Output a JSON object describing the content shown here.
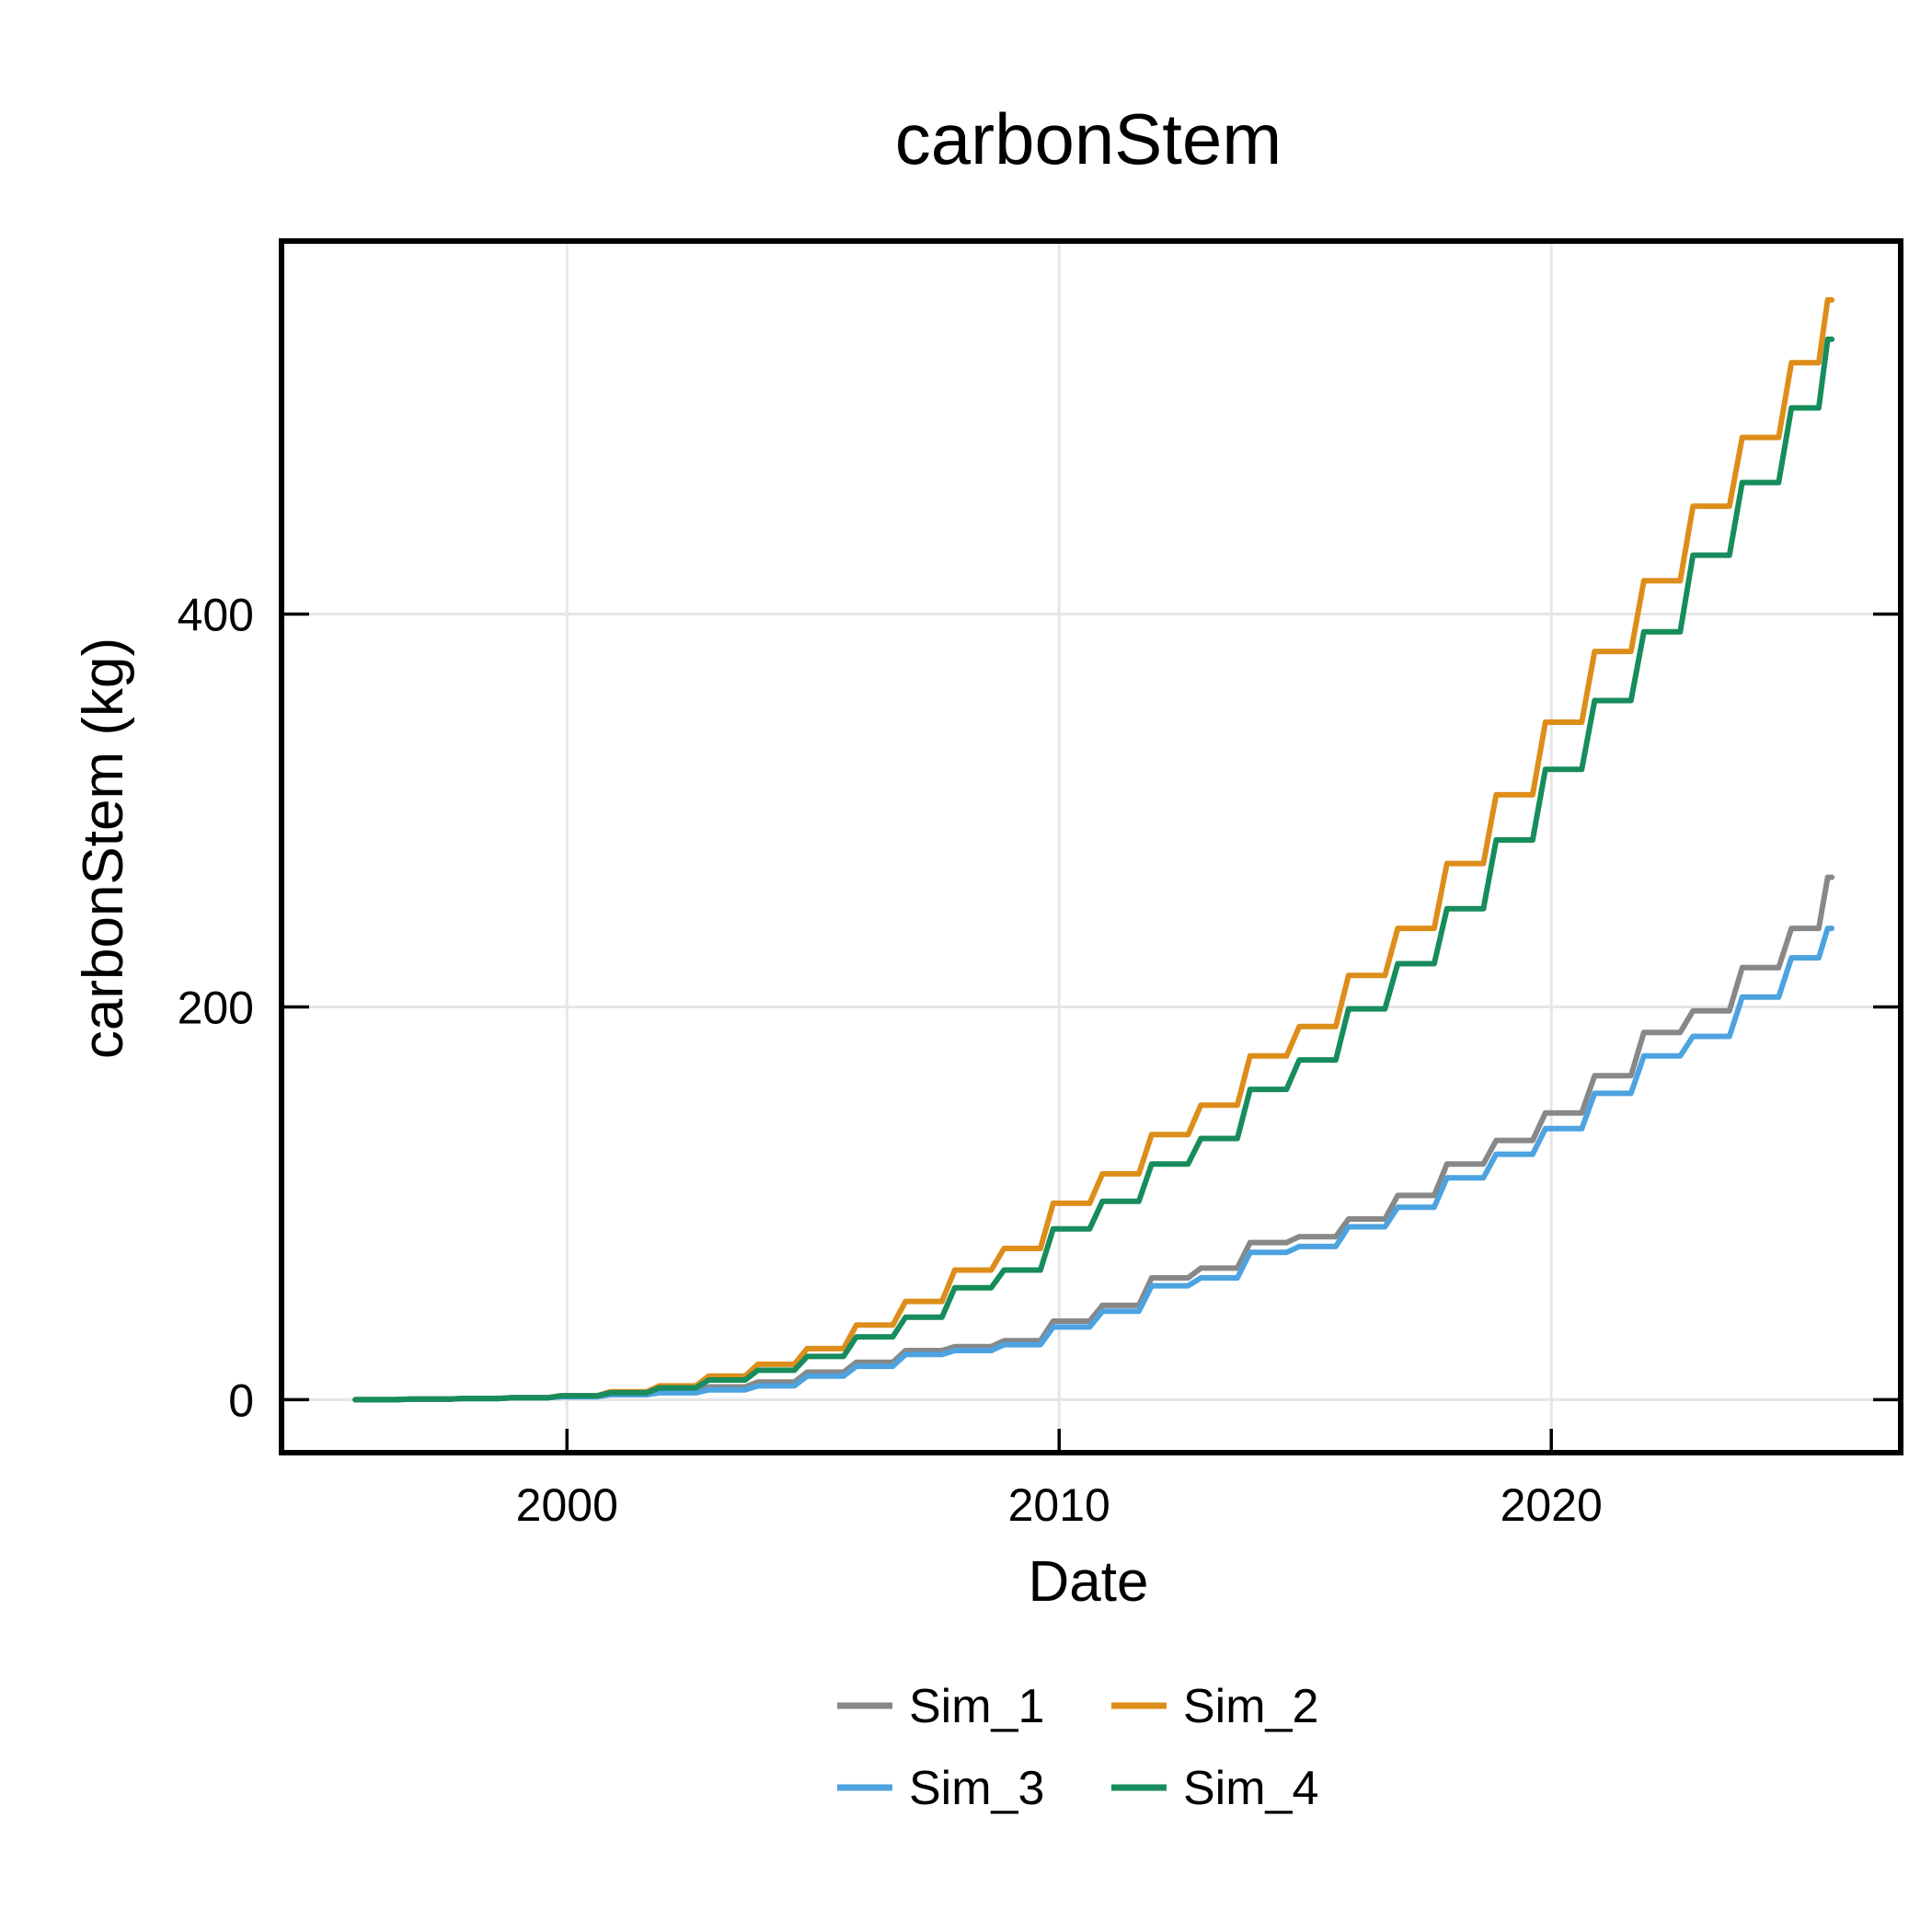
{
  "chart_data": {
    "type": "line",
    "title": "carbonStem",
    "xlabel": "Date",
    "ylabel": "carbonStem (kg)",
    "xlim": [
      1994.2,
      2027.1
    ],
    "ylim": [
      -27,
      590
    ],
    "x_ticks": [
      {
        "value": 2000,
        "label": "2000"
      },
      {
        "value": 2010,
        "label": "2010"
      },
      {
        "value": 2020,
        "label": "2020"
      }
    ],
    "y_ticks": [
      {
        "value": 0,
        "label": "0"
      },
      {
        "value": 200,
        "label": "200"
      },
      {
        "value": 400,
        "label": "400"
      }
    ],
    "grid": true,
    "legend_position": "bottom",
    "series": [
      {
        "name": "Sim_1",
        "color": "#888888",
        "x": [
          1995.7,
          1997,
          1998,
          1999,
          2000,
          2001,
          2002,
          2003,
          2004,
          2005,
          2006,
          2007,
          2008,
          2009,
          2010,
          2011,
          2012,
          2013,
          2014,
          2015,
          2016,
          2017,
          2018,
          2019,
          2020,
          2021,
          2022,
          2023,
          2024,
          2025,
          2025.7
        ],
        "y": [
          0,
          0.3,
          0.6,
          1,
          1.8,
          3,
          4.5,
          6.5,
          9,
          14,
          19,
          25,
          27,
          30,
          40,
          48,
          62,
          67,
          80,
          83,
          92,
          104,
          120,
          132,
          146,
          165,
          187,
          198,
          220,
          240,
          266
        ]
      },
      {
        "name": "Sim_2",
        "color": "#dd8e1a",
        "x": [
          1995.7,
          1997,
          1998,
          1999,
          2000,
          2001,
          2002,
          2003,
          2004,
          2005,
          2006,
          2007,
          2008,
          2009,
          2010,
          2011,
          2012,
          2013,
          2014,
          2015,
          2016,
          2017,
          2018,
          2019,
          2020,
          2021,
          2022,
          2023,
          2024,
          2025,
          2025.7
        ],
        "y": [
          0,
          0.3,
          0.6,
          1,
          2,
          4,
          7,
          12,
          18,
          26,
          38,
          50,
          66,
          77,
          100,
          115,
          135,
          150,
          175,
          190,
          216,
          240,
          273,
          308,
          345,
          381,
          417,
          455,
          490,
          528,
          560
        ]
      },
      {
        "name": "Sim_3",
        "color": "#4da3e0",
        "x": [
          1995.7,
          1997,
          1998,
          1999,
          2000,
          2001,
          2002,
          2003,
          2004,
          2005,
          2006,
          2007,
          2008,
          2009,
          2010,
          2011,
          2012,
          2013,
          2014,
          2015,
          2016,
          2017,
          2018,
          2019,
          2020,
          2021,
          2022,
          2023,
          2024,
          2025,
          2025.7
        ],
        "y": [
          0,
          0.3,
          0.6,
          1,
          1.5,
          2.5,
          3.5,
          5,
          7,
          12,
          17,
          23,
          25,
          28,
          37,
          45,
          58,
          62,
          75,
          78,
          88,
          98,
          113,
          125,
          138,
          156,
          175,
          185,
          205,
          225,
          240
        ]
      },
      {
        "name": "Sim_4",
        "color": "#178c5c",
        "x": [
          1995.7,
          1997,
          1998,
          1999,
          2000,
          2001,
          2002,
          2003,
          2004,
          2005,
          2006,
          2007,
          2008,
          2009,
          2010,
          2011,
          2012,
          2013,
          2014,
          2015,
          2016,
          2017,
          2018,
          2019,
          2020,
          2021,
          2022,
          2023,
          2024,
          2025,
          2025.7
        ],
        "y": [
          0,
          0.3,
          0.6,
          1,
          2,
          3.5,
          6,
          10,
          15,
          22,
          32,
          42,
          57,
          66,
          87,
          101,
          120,
          133,
          158,
          173,
          199,
          222,
          250,
          285,
          321,
          356,
          391,
          430,
          467,
          505,
          540
        ]
      }
    ]
  }
}
